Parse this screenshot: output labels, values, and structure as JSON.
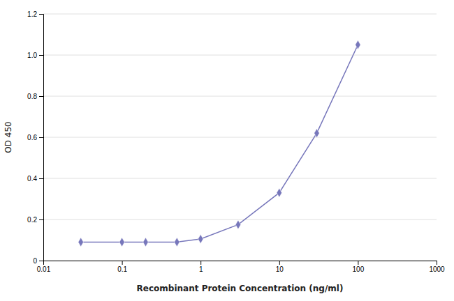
{
  "chart_data": {
    "type": "line",
    "x": [
      0.03,
      0.1,
      0.2,
      0.5,
      1.0,
      3.0,
      10.0,
      30.0,
      100.0
    ],
    "values": [
      0.09,
      0.09,
      0.09,
      0.09,
      0.105,
      0.175,
      0.33,
      0.62,
      1.05
    ],
    "color": "#7777bb",
    "marker": "diamond",
    "xlabel": "Recombinant Protein Concentration (ng/ml)",
    "ylabel": "OD 450",
    "log": "x",
    "xlim": [
      0.01,
      1000
    ],
    "xticks": [
      0.01,
      0.1,
      1,
      10,
      100,
      1000
    ],
    "ylim": [
      0,
      1.2
    ],
    "yticks": [
      0,
      0.2,
      0.4,
      0.6,
      0.8,
      {
        "value": 1.0,
        "label": "1.0"
      },
      1.2
    ],
    "grid": true
  }
}
